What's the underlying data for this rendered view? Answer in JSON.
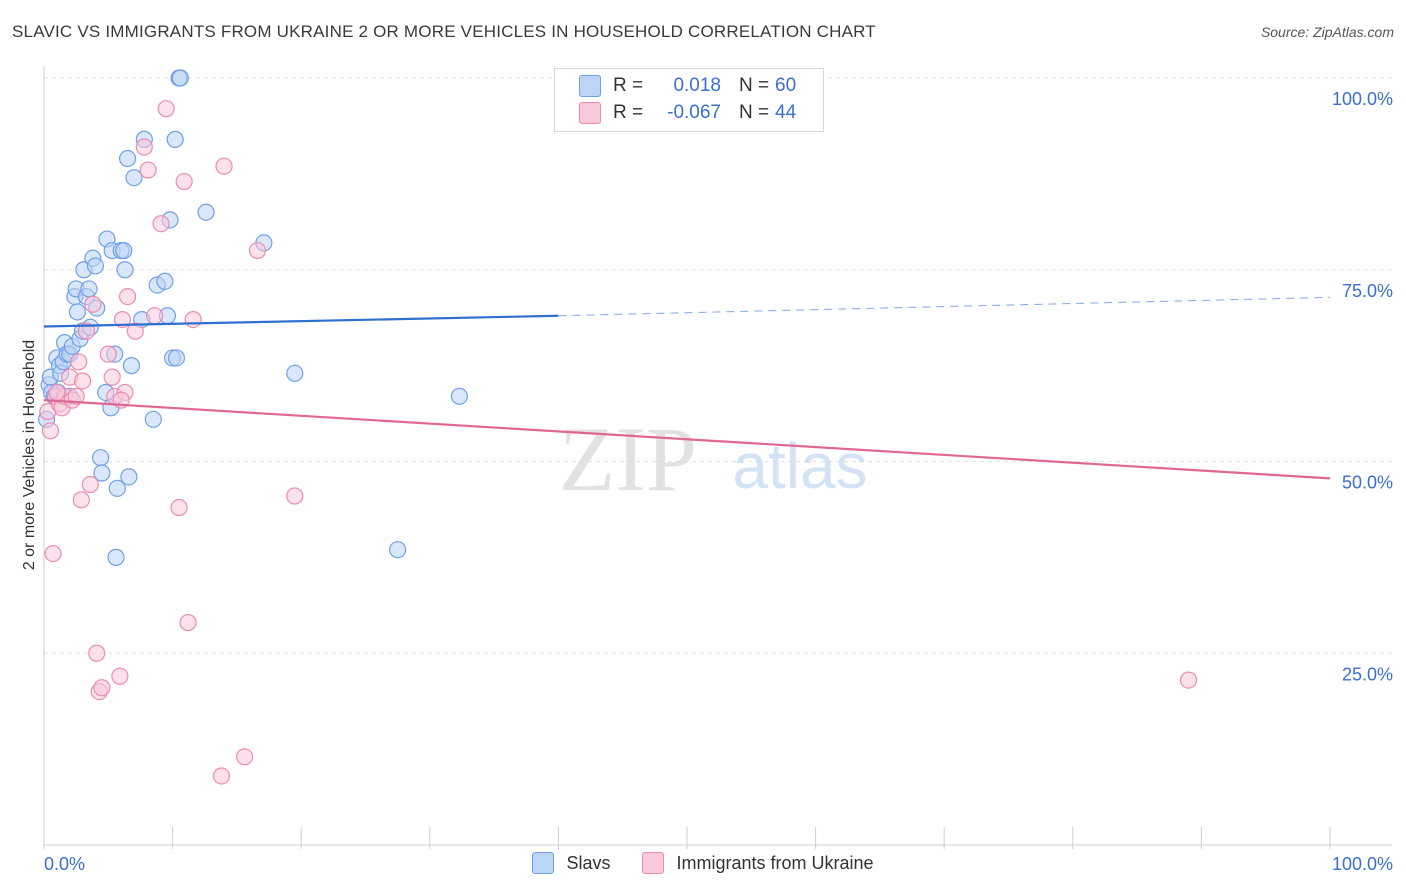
{
  "title": "SLAVIC VS IMMIGRANTS FROM UKRAINE 2 OR MORE VEHICLES IN HOUSEHOLD CORRELATION CHART",
  "source": "Source: ZipAtlas.com",
  "watermark": {
    "zip": "ZIP",
    "atlas": "atlas"
  },
  "legend": {
    "rows": [
      {
        "r_label": "R =",
        "r_value": "0.018",
        "n_label": "N =",
        "n_value": "60"
      },
      {
        "r_label": "R =",
        "r_value": "-0.067",
        "n_label": "N =",
        "n_value": "44"
      }
    ]
  },
  "bottom_legend": [
    "Slavs",
    "Immigrants from Ukraine"
  ],
  "chart_data": {
    "type": "scatter",
    "title": "SLAVIC VS IMMIGRANTS FROM UKRAINE 2 OR MORE VEHICLES IN HOUSEHOLD CORRELATION CHART",
    "xlabel": "",
    "ylabel": "2 or more Vehicles in Household",
    "xlim": [
      0,
      100
    ],
    "ylim": [
      0,
      100
    ],
    "x_tick_labels": [
      {
        "value": 0,
        "label": "0.0%"
      },
      {
        "value": 100,
        "label": "100.0%"
      }
    ],
    "y_tick_labels": [
      {
        "value": 25,
        "label": "25.0%"
      },
      {
        "value": 50,
        "label": "50.0%"
      },
      {
        "value": 75,
        "label": "75.0%"
      },
      {
        "value": 100,
        "label": "100.0%"
      }
    ],
    "grid": true,
    "series": [
      {
        "name": "Slavs",
        "color": "#6fa0e8",
        "fill": "#bcd4f5",
        "trend": {
          "x0": 0,
          "y0": 67.6,
          "x1": 40,
          "y1": 69.0,
          "dashed_to_x": 100,
          "dashed_to_y": 71.4
        },
        "points": [
          [
            0.2,
            55.5
          ],
          [
            0.4,
            60
          ],
          [
            0.5,
            61
          ],
          [
            0.6,
            59
          ],
          [
            0.8,
            58.5
          ],
          [
            1.0,
            63.5
          ],
          [
            1.2,
            62.5
          ],
          [
            1.3,
            61.5
          ],
          [
            1.5,
            63
          ],
          [
            1.6,
            65.5
          ],
          [
            1.8,
            64
          ],
          [
            2.0,
            64
          ],
          [
            2.2,
            65
          ],
          [
            2.4,
            71.5
          ],
          [
            2.5,
            72.5
          ],
          [
            2.6,
            69.5
          ],
          [
            2.8,
            66
          ],
          [
            3.0,
            67
          ],
          [
            3.1,
            75
          ],
          [
            3.3,
            71.5
          ],
          [
            3.5,
            72.5
          ],
          [
            3.6,
            67.5
          ],
          [
            3.8,
            76.5
          ],
          [
            4.0,
            75.5
          ],
          [
            4.1,
            70
          ],
          [
            4.4,
            50.5
          ],
          [
            4.5,
            48.5
          ],
          [
            4.8,
            59
          ],
          [
            4.9,
            79
          ],
          [
            5.2,
            57
          ],
          [
            5.3,
            77.5
          ],
          [
            5.5,
            64
          ],
          [
            5.6,
            37.5
          ],
          [
            5.7,
            46.5
          ],
          [
            6.0,
            77.5
          ],
          [
            6.2,
            77.5
          ],
          [
            6.3,
            75
          ],
          [
            6.5,
            89.5
          ],
          [
            6.6,
            48
          ],
          [
            6.8,
            62.5
          ],
          [
            7.0,
            87
          ],
          [
            7.6,
            68.5
          ],
          [
            7.8,
            92
          ],
          [
            8.5,
            55.5
          ],
          [
            8.8,
            73
          ],
          [
            9.4,
            73.5
          ],
          [
            9.6,
            69
          ],
          [
            9.8,
            81.5
          ],
          [
            10.0,
            63.5
          ],
          [
            10.2,
            92
          ],
          [
            10.3,
            63.5
          ],
          [
            10.5,
            100
          ],
          [
            10.6,
            100
          ],
          [
            12.6,
            82.5
          ],
          [
            17.1,
            78.5
          ],
          [
            19.5,
            61.5
          ],
          [
            27.5,
            38.5
          ],
          [
            32.3,
            58.5
          ],
          [
            2.0,
            58.5
          ],
          [
            1.1,
            59
          ]
        ]
      },
      {
        "name": "Immigrants from Ukraine",
        "color": "#ec8db0",
        "fill": "#f8c9da",
        "trend": {
          "x0": 0,
          "y0": 58.0,
          "x1": 100,
          "y1": 47.8
        },
        "points": [
          [
            0.3,
            56.5
          ],
          [
            0.5,
            54
          ],
          [
            0.7,
            38
          ],
          [
            0.9,
            58.5
          ],
          [
            1.2,
            57.5
          ],
          [
            1.4,
            57
          ],
          [
            1.6,
            58.5
          ],
          [
            2.0,
            61
          ],
          [
            2.2,
            58
          ],
          [
            2.5,
            58.5
          ],
          [
            2.9,
            45
          ],
          [
            3.3,
            67
          ],
          [
            3.6,
            47
          ],
          [
            3.8,
            70.5
          ],
          [
            4.1,
            25
          ],
          [
            4.3,
            20
          ],
          [
            4.5,
            20.5
          ],
          [
            5.0,
            64
          ],
          [
            5.3,
            61
          ],
          [
            5.5,
            58.5
          ],
          [
            5.9,
            22
          ],
          [
            6.1,
            68.5
          ],
          [
            6.3,
            59
          ],
          [
            6.5,
            71.5
          ],
          [
            7.1,
            67
          ],
          [
            7.8,
            91
          ],
          [
            8.1,
            88
          ],
          [
            8.6,
            69
          ],
          [
            9.1,
            81
          ],
          [
            9.5,
            96
          ],
          [
            10.5,
            44
          ],
          [
            10.9,
            86.5
          ],
          [
            11.2,
            29
          ],
          [
            11.6,
            68.5
          ],
          [
            13.8,
            9
          ],
          [
            14.0,
            88.5
          ],
          [
            15.6,
            11.5
          ],
          [
            16.6,
            77.5
          ],
          [
            19.5,
            45.5
          ],
          [
            89.0,
            21.5
          ],
          [
            1.0,
            59
          ],
          [
            2.7,
            63
          ],
          [
            6.0,
            58
          ],
          [
            3.0,
            60.5
          ]
        ]
      }
    ]
  }
}
